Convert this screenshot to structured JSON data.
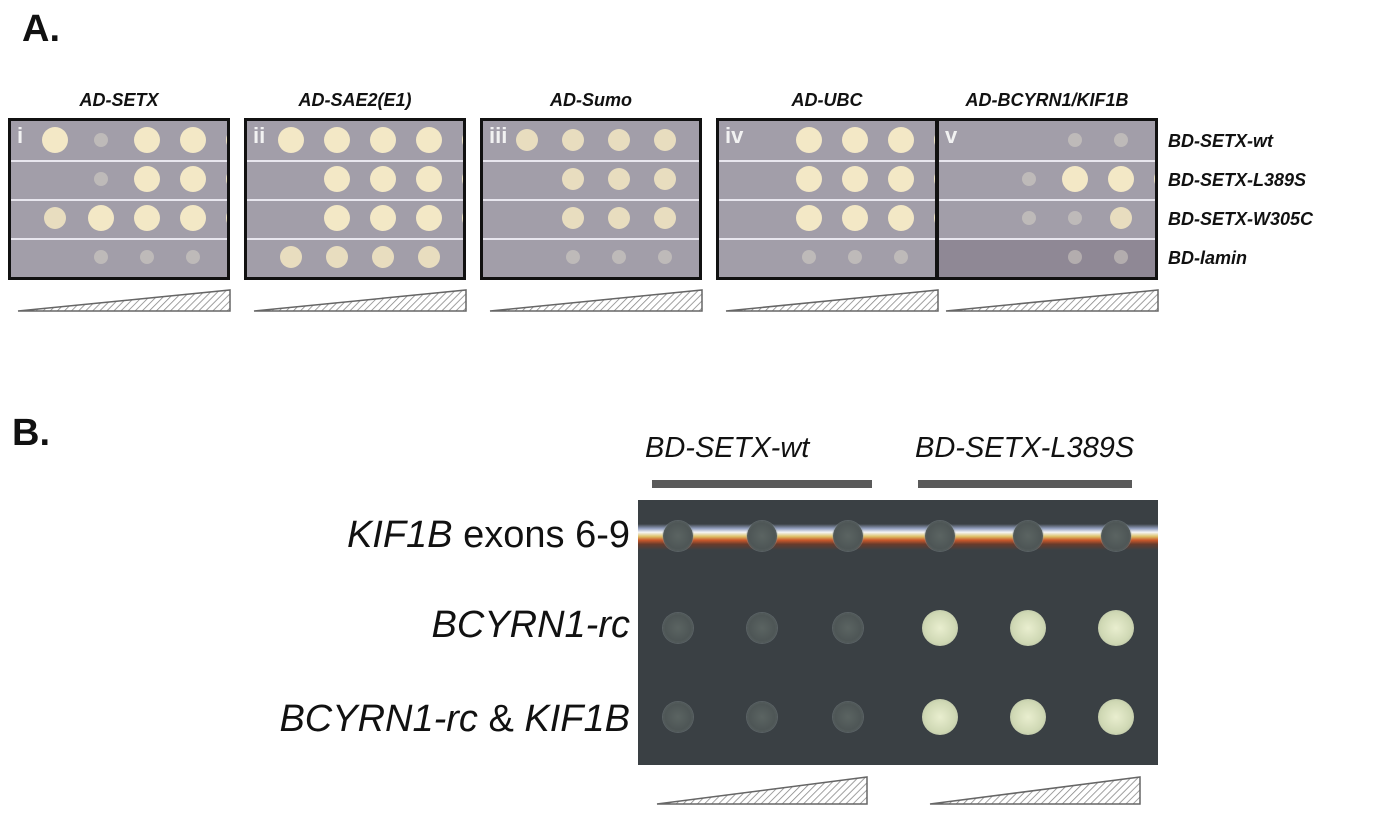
{
  "panel_a": {
    "letter": "A.",
    "plates": [
      {
        "label": "AD-SETX",
        "numeral": "i"
      },
      {
        "label": "AD-SAE2(E1)",
        "numeral": "ii"
      },
      {
        "label": "AD-Sumo",
        "numeral": "iii"
      },
      {
        "label": "AD-UBC",
        "numeral": "iv"
      },
      {
        "label": "AD-BCYRN1/KIF1B",
        "numeral": "v"
      }
    ],
    "row_labels": [
      "BD-SETX-wt",
      "BD-SETX-L389S",
      "BD-SETX-W305C",
      "BD-lamin"
    ],
    "growth": [
      [
        [
          3,
          1,
          3,
          3,
          3
        ],
        [
          0,
          1,
          3,
          3,
          3
        ],
        [
          2,
          3,
          3,
          3,
          3
        ],
        [
          0,
          1,
          1,
          1,
          2
        ]
      ],
      [
        [
          3,
          3,
          3,
          3,
          3
        ],
        [
          0,
          3,
          3,
          3,
          3
        ],
        [
          0,
          3,
          3,
          3,
          3
        ],
        [
          2,
          2,
          2,
          2,
          0
        ]
      ],
      [
        [
          2,
          2,
          2,
          2,
          2
        ],
        [
          0,
          2,
          2,
          2,
          2
        ],
        [
          0,
          2,
          2,
          2,
          2
        ],
        [
          0,
          1,
          1,
          1,
          1
        ]
      ],
      [
        [
          0,
          3,
          3,
          3,
          3
        ],
        [
          0,
          3,
          3,
          3,
          3
        ],
        [
          0,
          3,
          3,
          3,
          3
        ],
        [
          0,
          1,
          1,
          1,
          1
        ]
      ],
      [
        [
          0,
          0,
          1,
          1,
          1
        ],
        [
          0,
          1,
          3,
          3,
          3
        ],
        [
          0,
          1,
          1,
          2,
          2
        ],
        [
          0,
          0,
          1,
          1,
          1
        ]
      ]
    ]
  },
  "panel_b": {
    "letter": "B.",
    "column_groups": [
      "BD-SETX-wt",
      "BD-SETX-L389S"
    ],
    "rows": [
      {
        "italic": "KIF1B",
        "rest": " exons 6-9",
        "growth": [
          1,
          1,
          1,
          1,
          1,
          1
        ]
      },
      {
        "italic": "BCYRN1-rc",
        "rest": "",
        "growth": [
          1,
          1,
          1,
          3,
          3,
          3
        ]
      },
      {
        "italic": "BCYRN1-rc",
        "rest": " & ",
        "italic2": "KIF1B",
        "growth": [
          1,
          1,
          1,
          3,
          3,
          3
        ]
      }
    ]
  }
}
